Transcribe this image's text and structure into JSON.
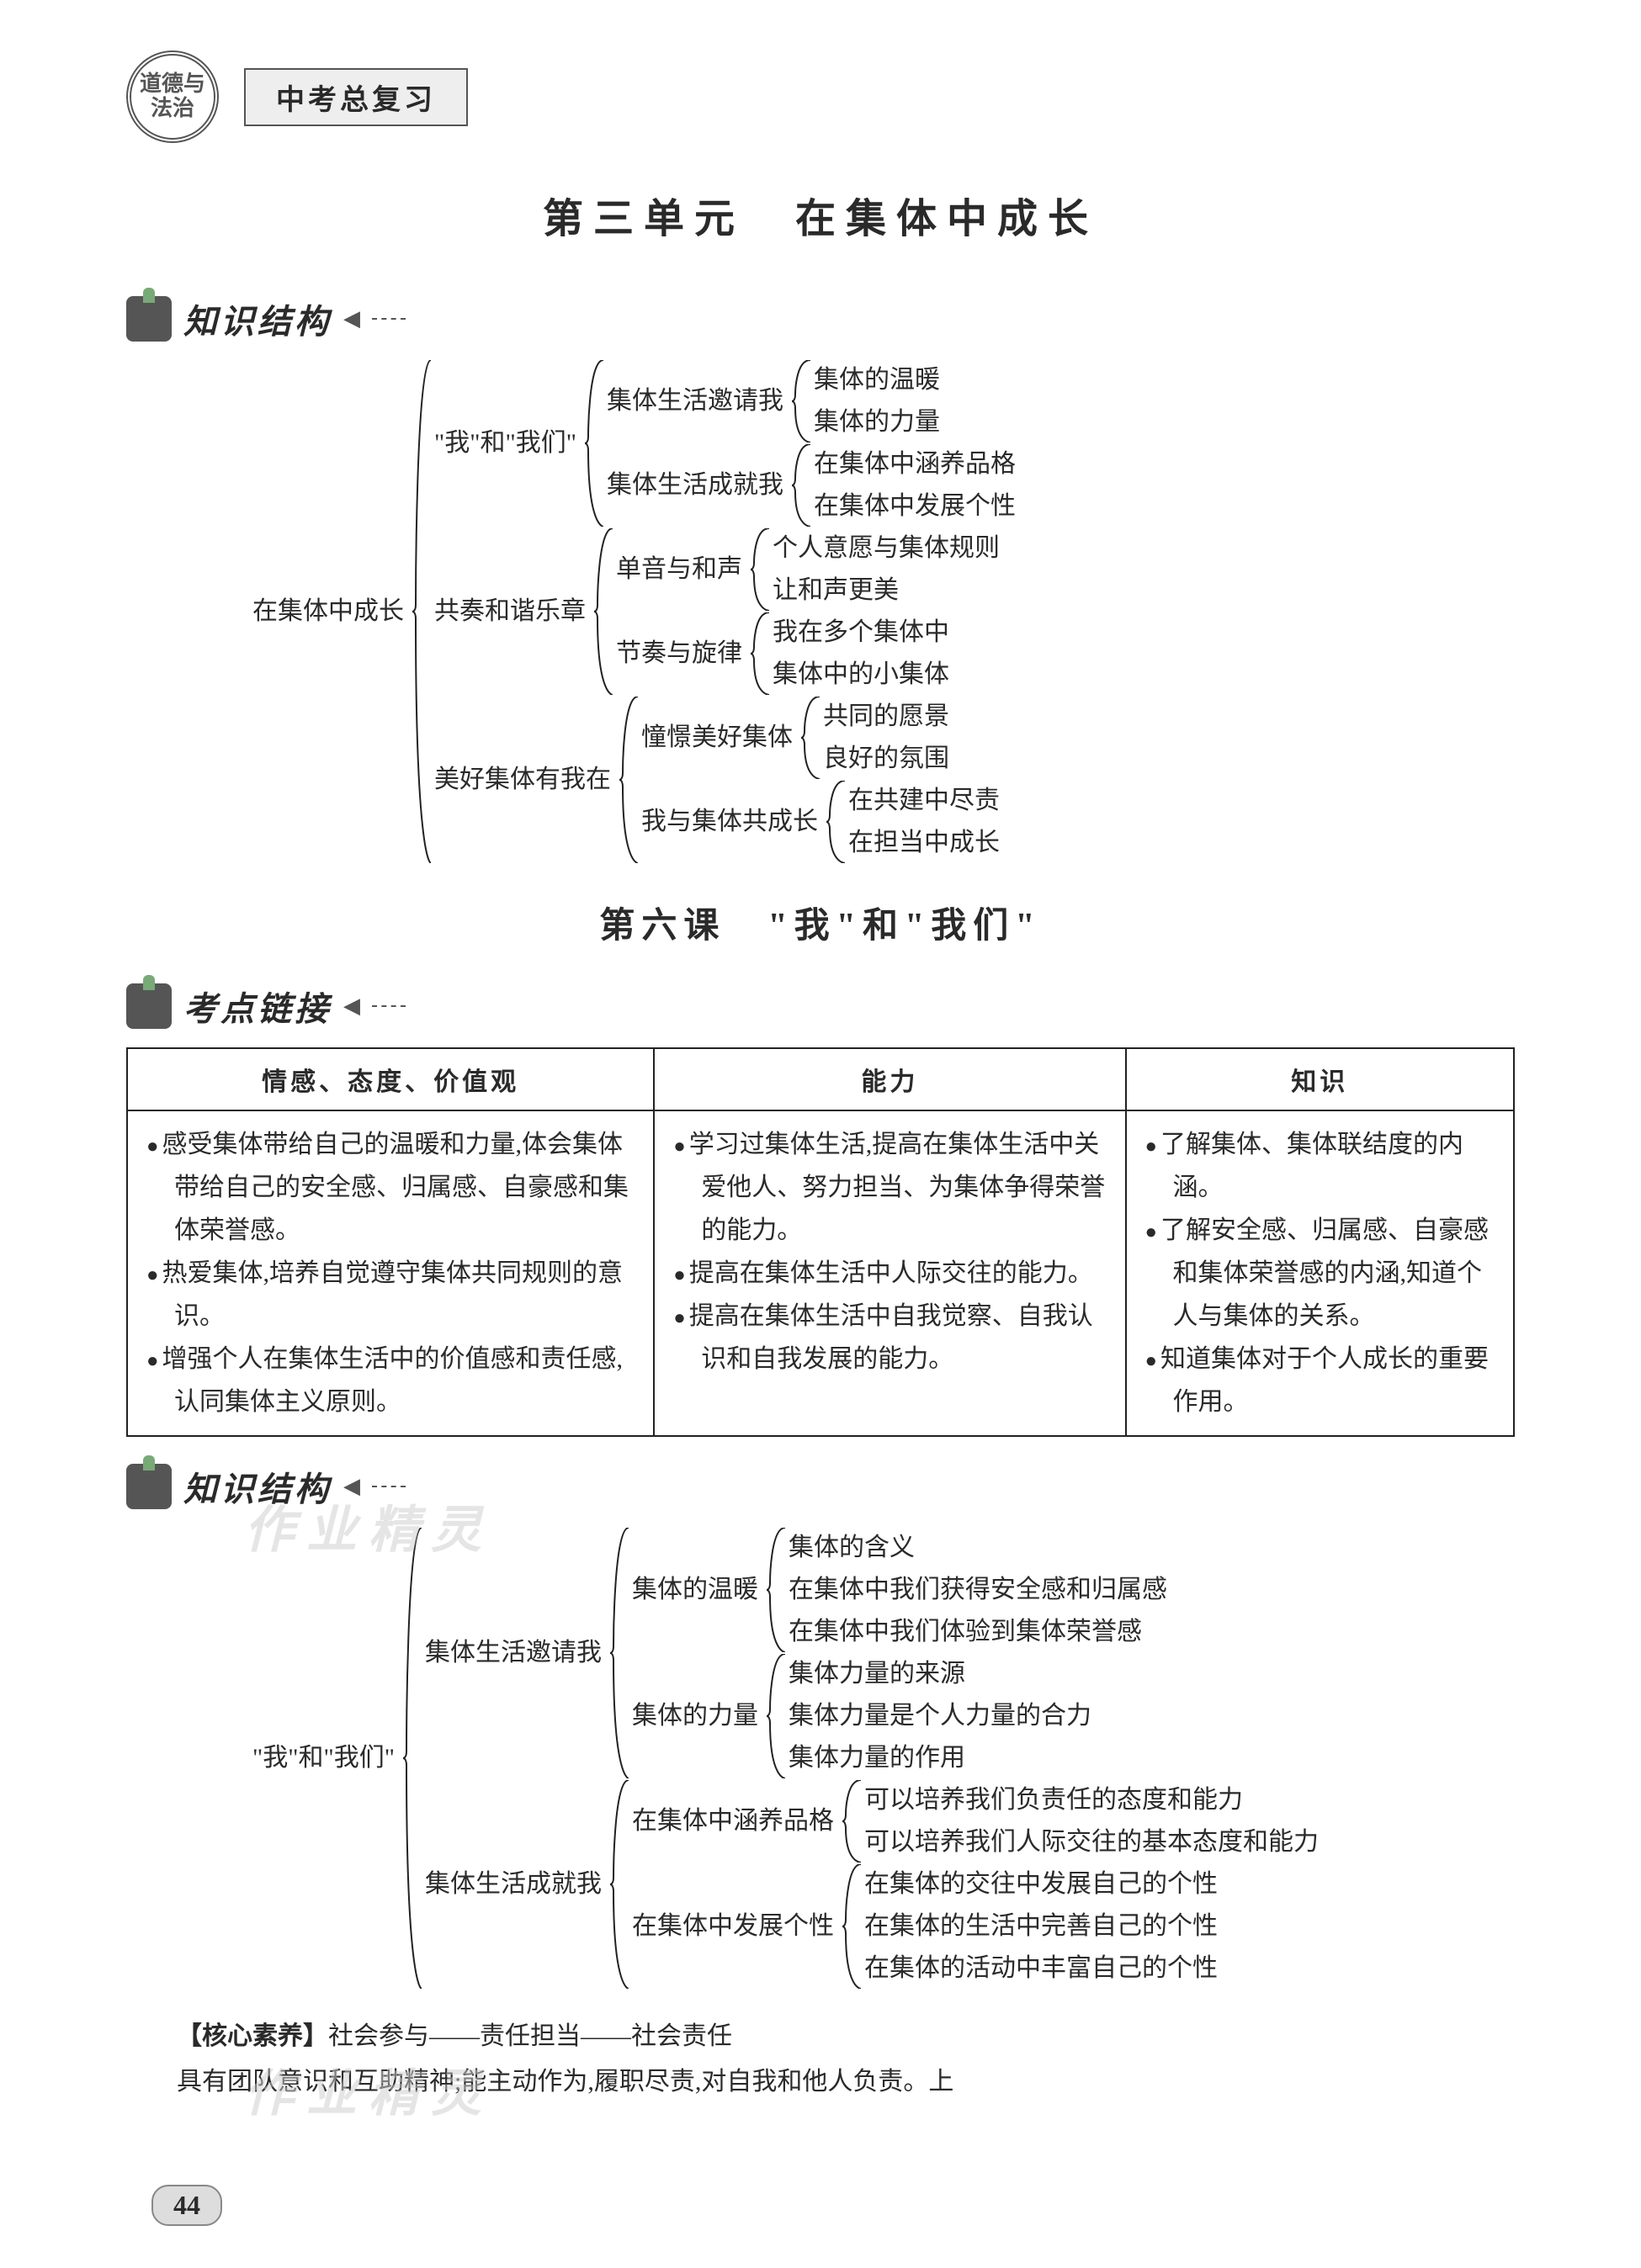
{
  "header": {
    "seal_text": "道德与法治",
    "tag": "中考总复习"
  },
  "unit_title": "第三单元　在集体中成长",
  "section_labels": {
    "structure": "知识结构",
    "kaodian": "考点链接"
  },
  "tree1": {
    "root": "在集体中成长",
    "children": [
      {
        "label": "\"我\"和\"我们\"",
        "children": [
          {
            "label": "集体生活邀请我",
            "children": [
              {
                "leaf": "集体的温暖"
              },
              {
                "leaf": "集体的力量"
              }
            ]
          },
          {
            "label": "集体生活成就我",
            "children": [
              {
                "leaf": "在集体中涵养品格"
              },
              {
                "leaf": "在集体中发展个性"
              }
            ]
          }
        ]
      },
      {
        "label": "共奏和谐乐章",
        "children": [
          {
            "label": "单音与和声",
            "children": [
              {
                "leaf": "个人意愿与集体规则"
              },
              {
                "leaf": "让和声更美"
              }
            ]
          },
          {
            "label": "节奏与旋律",
            "children": [
              {
                "leaf": "我在多个集体中"
              },
              {
                "leaf": "集体中的小集体"
              }
            ]
          }
        ]
      },
      {
        "label": "美好集体有我在",
        "children": [
          {
            "label": "憧憬美好集体",
            "children": [
              {
                "leaf": "共同的愿景"
              },
              {
                "leaf": "良好的氛围"
              }
            ]
          },
          {
            "label": "我与集体共成长",
            "children": [
              {
                "leaf": "在共建中尽责"
              },
              {
                "leaf": "在担当中成长"
              }
            ]
          }
        ]
      }
    ]
  },
  "lesson_title": "第六课　\"我\"和\"我们\"",
  "table": {
    "headers": [
      "情感、态度、价值观",
      "能力",
      "知识"
    ],
    "col_widths": [
      "38%",
      "34%",
      "28%"
    ],
    "rows": [
      [
        [
          "感受集体带给自己的温暖和力量,体会集体带给自己的安全感、归属感、自豪感和集体荣誉感。",
          "热爱集体,培养自觉遵守集体共同规则的意识。",
          "增强个人在集体生活中的价值感和责任感,认同集体主义原则。"
        ],
        [
          "学习过集体生活,提高在集体生活中关爱他人、努力担当、为集体争得荣誉的能力。",
          "提高在集体生活中人际交往的能力。",
          "提高在集体生活中自我觉察、自我认识和自我发展的能力。"
        ],
        [
          "了解集体、集体联结度的内涵。",
          "了解安全感、归属感、自豪感和集体荣誉感的内涵,知道个人与集体的关系。",
          "知道集体对于个人成长的重要作用。"
        ]
      ]
    ]
  },
  "tree2": {
    "root": "\"我\"和\"我们\"",
    "children": [
      {
        "label": "集体生活邀请我",
        "children": [
          {
            "label": "集体的温暖",
            "children": [
              {
                "leaf": "集体的含义"
              },
              {
                "leaf": "在集体中我们获得安全感和归属感"
              },
              {
                "leaf": "在集体中我们体验到集体荣誉感"
              }
            ]
          },
          {
            "label": "集体的力量",
            "children": [
              {
                "leaf": "集体力量的来源"
              },
              {
                "leaf": "集体力量是个人力量的合力"
              },
              {
                "leaf": "集体力量的作用"
              }
            ]
          }
        ]
      },
      {
        "label": "集体生活成就我",
        "children": [
          {
            "label": "在集体中涵养品格",
            "children": [
              {
                "leaf": "可以培养我们负责任的态度和能力"
              },
              {
                "leaf": "可以培养我们人际交往的基本态度和能力"
              }
            ]
          },
          {
            "label": "在集体中发展个性",
            "children": [
              {
                "leaf": "在集体的交往中发展自己的个性"
              },
              {
                "leaf": "在集体的生活中完善自己的个性"
              },
              {
                "leaf": "在集体的活动中丰富自己的个性"
              }
            ]
          }
        ]
      }
    ]
  },
  "footer": {
    "hexin_label": "【核心素养】",
    "hexin_text": "社会参与——责任担当——社会责任",
    "body": "具有团队意识和互助精神;能主动作为,履职尽责,对自我和他人负责。上"
  },
  "watermark": "作业精灵",
  "page_number": "44",
  "colors": {
    "text": "#2a2a2a",
    "border": "#222222",
    "badge": "#555555",
    "watermark": "#cccccc"
  }
}
